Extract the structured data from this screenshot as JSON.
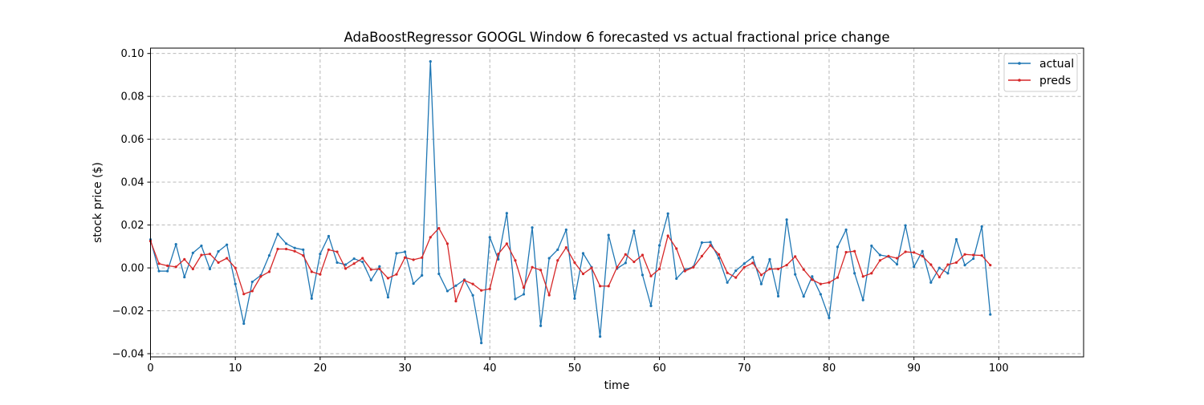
{
  "chart_data": {
    "type": "line",
    "title": "AdaBoostRegressor GOOGL Window 6 forecasted vs actual fractional price change",
    "xlabel": "time",
    "ylabel": "stock price ($)",
    "xlim": [
      0,
      110
    ],
    "ylim": [
      -0.0415,
      0.1025
    ],
    "xticks": [
      0,
      10,
      20,
      30,
      40,
      50,
      60,
      70,
      80,
      90,
      100
    ],
    "xtick_labels": [
      "0",
      "10",
      "20",
      "30",
      "40",
      "50",
      "60",
      "70",
      "80",
      "90",
      "100"
    ],
    "yticks": [
      -0.04,
      -0.02,
      0.0,
      0.02,
      0.04,
      0.06,
      0.08,
      0.1
    ],
    "ytick_labels": [
      "−0.04",
      "−0.02",
      "0.00",
      "0.02",
      "0.04",
      "0.06",
      "0.08",
      "0.10"
    ],
    "grid": true,
    "legend_position": "top-right",
    "series": [
      {
        "name": "actual",
        "color": "#1f77b4",
        "x": [
          0,
          1,
          2,
          3,
          4,
          5,
          6,
          7,
          8,
          9,
          10,
          11,
          12,
          13,
          14,
          15,
          16,
          17,
          18,
          19,
          20,
          21,
          22,
          23,
          24,
          25,
          26,
          27,
          28,
          29,
          30,
          31,
          32,
          33,
          34,
          35,
          36,
          37,
          38,
          39,
          40,
          41,
          42,
          43,
          44,
          45,
          46,
          47,
          48,
          49,
          50,
          51,
          52,
          53,
          54,
          55,
          56,
          57,
          58,
          59,
          60,
          61,
          62,
          63,
          64,
          65,
          66,
          67,
          68,
          69,
          70,
          71,
          72,
          73,
          74,
          75,
          76,
          77,
          78,
          79,
          80,
          81,
          82,
          83,
          84,
          85,
          86,
          87,
          88,
          89,
          90,
          91,
          92,
          93,
          94,
          95,
          96,
          97,
          98,
          99
        ],
        "values": [
          0.0132,
          -0.0015,
          -0.0015,
          0.011,
          -0.0043,
          0.007,
          0.0103,
          -0.0005,
          0.0077,
          0.0108,
          -0.0075,
          -0.026,
          -0.0065,
          -0.0035,
          0.0058,
          0.0158,
          0.0113,
          0.0093,
          0.0085,
          -0.0143,
          0.0065,
          0.0148,
          0.0025,
          0.0015,
          0.0043,
          0.0028,
          -0.0057,
          0.0007,
          -0.0137,
          0.0068,
          0.0075,
          -0.0073,
          -0.0035,
          0.0963,
          -0.0028,
          -0.0108,
          -0.0083,
          -0.0055,
          -0.0128,
          -0.035,
          0.0143,
          0.004,
          0.0255,
          -0.0145,
          -0.0123,
          0.0188,
          -0.027,
          0.0045,
          0.0085,
          0.0178,
          -0.0143,
          0.0068,
          0.0003,
          -0.032,
          0.0153,
          -0.0003,
          0.0023,
          0.0173,
          -0.0033,
          -0.0177,
          0.0105,
          0.0253,
          -0.005,
          -0.0008,
          0.0005,
          0.0118,
          0.012,
          0.0045,
          -0.0068,
          -0.0013,
          0.002,
          0.005,
          -0.0075,
          0.004,
          -0.0132,
          0.0225,
          -0.003,
          -0.0133,
          -0.004,
          -0.0123,
          -0.0233,
          0.0098,
          0.0178,
          -0.0025,
          -0.015,
          0.0103,
          0.006,
          0.0053,
          0.0017,
          0.0198,
          0.0005,
          0.0078,
          -0.0068,
          0.0,
          -0.0025,
          0.0133,
          0.0013,
          0.0043,
          0.0193,
          -0.0217
        ]
      },
      {
        "name": "preds",
        "color": "#d62728",
        "x": [
          0,
          1,
          2,
          3,
          4,
          5,
          6,
          7,
          8,
          9,
          10,
          11,
          12,
          13,
          14,
          15,
          16,
          17,
          18,
          19,
          20,
          21,
          22,
          23,
          24,
          25,
          26,
          27,
          28,
          29,
          30,
          31,
          32,
          33,
          34,
          35,
          36,
          37,
          38,
          39,
          40,
          41,
          42,
          43,
          44,
          45,
          46,
          47,
          48,
          49,
          50,
          51,
          52,
          53,
          54,
          55,
          56,
          57,
          58,
          59,
          60,
          61,
          62,
          63,
          64,
          65,
          66,
          67,
          68,
          69,
          70,
          71,
          72,
          73,
          74,
          75,
          76,
          77,
          78,
          79,
          80,
          81,
          82,
          83,
          84,
          85,
          86,
          87,
          88,
          89,
          90,
          91,
          92,
          93,
          94,
          95,
          96,
          97,
          98,
          99
        ],
        "values": [
          0.0125,
          0.002,
          0.001,
          0.0005,
          0.004,
          -0.0005,
          0.006,
          0.0065,
          0.0025,
          0.0045,
          0.0,
          -0.0122,
          -0.0108,
          -0.004,
          -0.0018,
          0.0088,
          0.0088,
          0.0078,
          0.0058,
          -0.0018,
          -0.003,
          0.0085,
          0.0075,
          -0.0003,
          0.002,
          0.0045,
          -0.0008,
          -0.0005,
          -0.0048,
          -0.003,
          0.0048,
          0.0038,
          0.0048,
          0.0143,
          0.0185,
          0.0113,
          -0.0155,
          -0.0058,
          -0.0075,
          -0.0105,
          -0.0098,
          0.0065,
          0.0113,
          0.0035,
          -0.0092,
          0.0003,
          -0.001,
          -0.0127,
          0.0035,
          0.0095,
          0.0025,
          -0.0028,
          0.0,
          -0.0085,
          -0.0085,
          0.0003,
          0.0063,
          0.0028,
          0.006,
          -0.0038,
          -0.0005,
          0.015,
          0.009,
          -0.0015,
          0.0003,
          0.0055,
          0.0105,
          0.0063,
          -0.0023,
          -0.0045,
          0.0003,
          0.0023,
          -0.0033,
          -0.0005,
          -0.0005,
          0.0013,
          0.0053,
          -0.0008,
          -0.0055,
          -0.0075,
          -0.0068,
          -0.0045,
          0.0073,
          0.0078,
          -0.004,
          -0.0025,
          0.0035,
          0.0055,
          0.0045,
          0.0075,
          0.0072,
          0.0055,
          0.0015,
          -0.0043,
          0.0015,
          0.0025,
          0.0063,
          0.006,
          0.0058,
          0.0013
        ]
      }
    ]
  }
}
